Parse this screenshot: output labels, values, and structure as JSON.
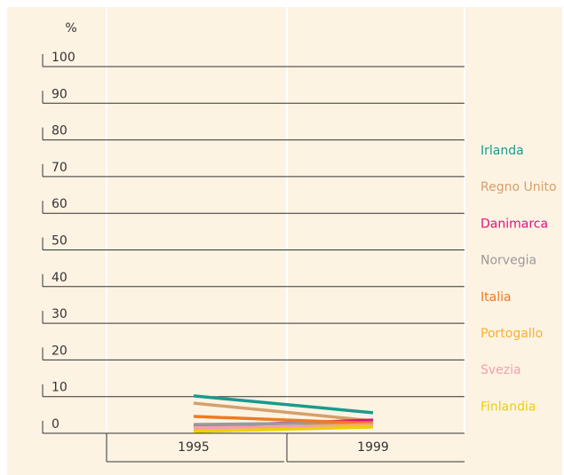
{
  "chart_data": {
    "type": "line",
    "y_label": "%",
    "x": [
      "1995",
      "1999"
    ],
    "series": [
      {
        "name": "Irlanda",
        "color": "#1a9a8c",
        "values": [
          10.2,
          5.6
        ]
      },
      {
        "name": "Regno Unito",
        "color": "#d4a06c",
        "values": [
          8.2,
          3.4
        ]
      },
      {
        "name": "Danimarca",
        "color": "#e0117c",
        "values": [
          1.9,
          3.6
        ]
      },
      {
        "name": "Norvegia",
        "color": "#9a9a9a",
        "values": [
          2.4,
          2.9
        ]
      },
      {
        "name": "Italia",
        "color": "#f07a20",
        "values": [
          4.6,
          2.7
        ]
      },
      {
        "name": "Portogallo",
        "color": "#f8b030",
        "values": [
          1.0,
          2.4
        ]
      },
      {
        "name": "Svezia",
        "color": "#f2a0b0",
        "values": [
          1.5,
          2.0
        ]
      },
      {
        "name": "Finlandia",
        "color": "#eed000",
        "values": [
          0.5,
          1.7
        ]
      }
    ],
    "ylim": [
      0,
      100
    ],
    "yticks": [
      0,
      10,
      20,
      30,
      40,
      50,
      60,
      70,
      80,
      90,
      100
    ],
    "grid": true,
    "legend": "right"
  }
}
